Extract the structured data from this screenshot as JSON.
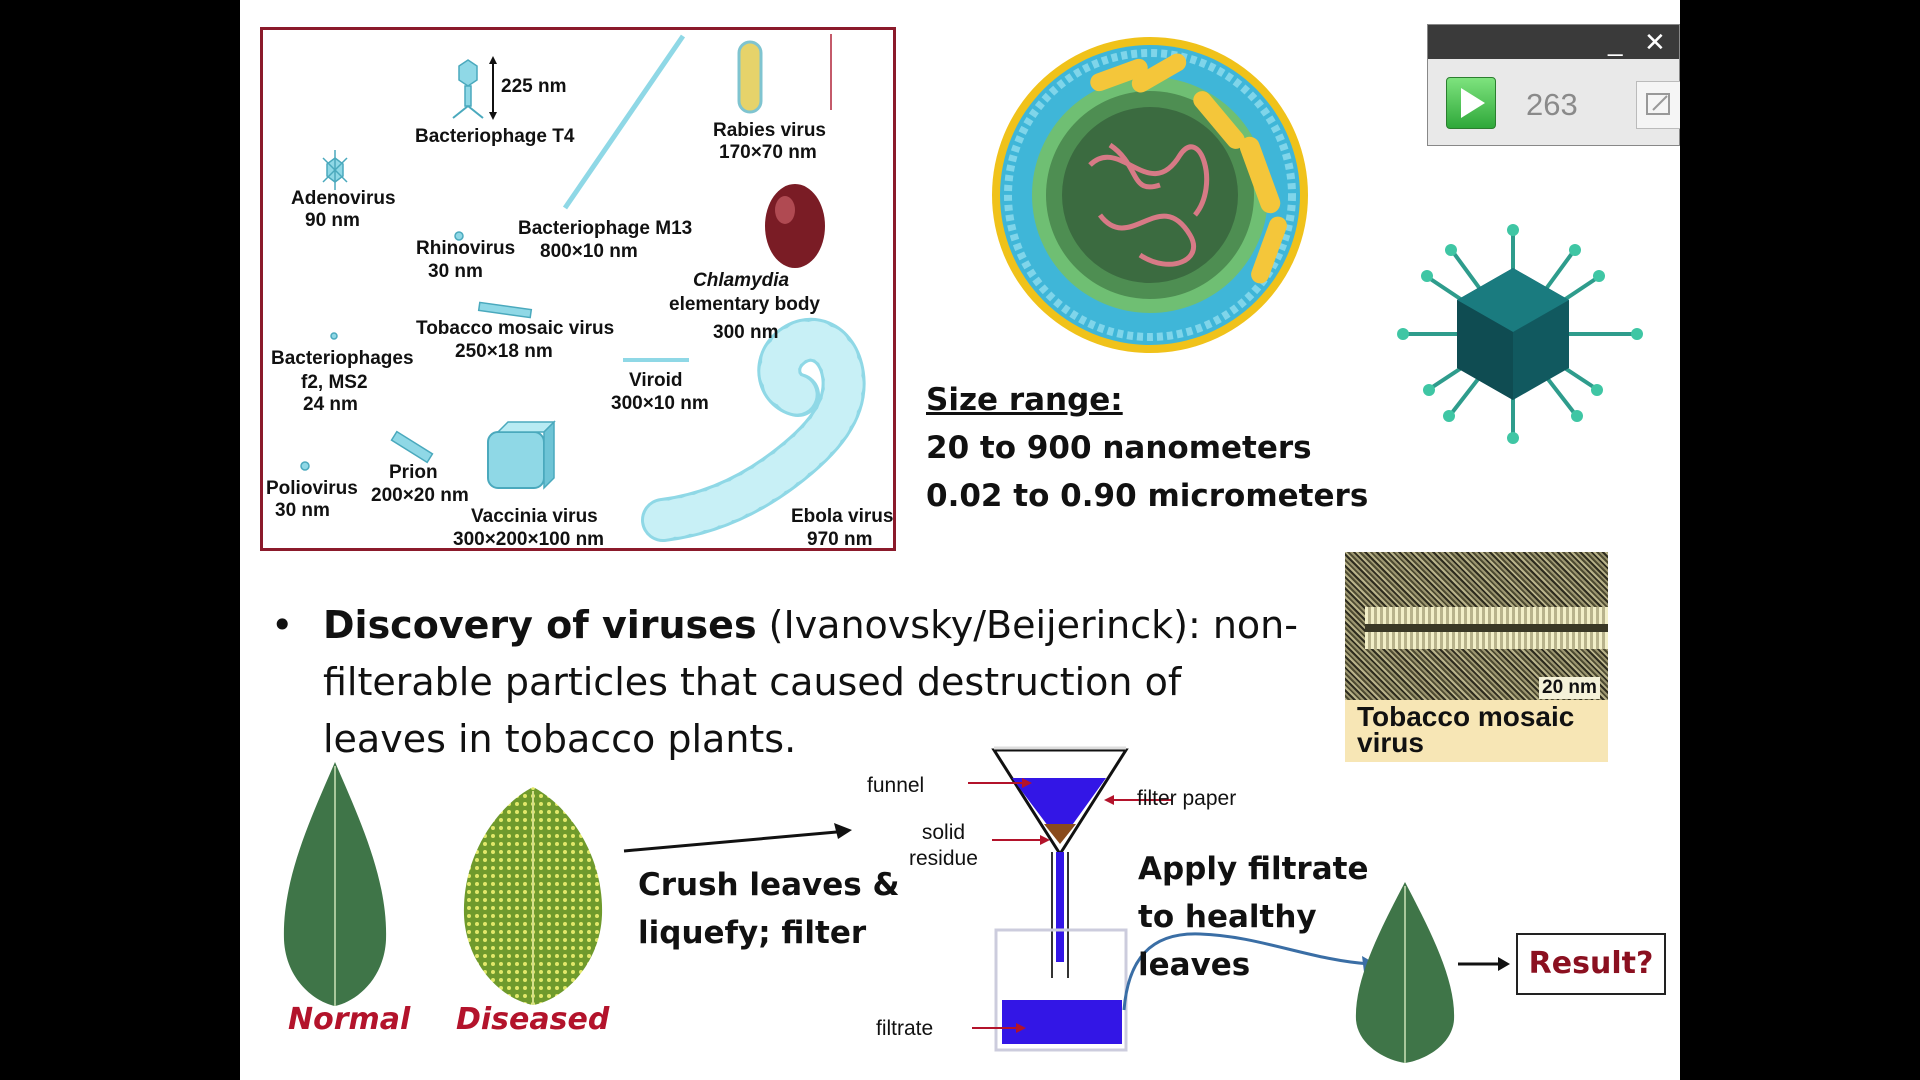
{
  "figure": {
    "bacteriophage_t4": {
      "name": "Bacteriophage T4",
      "size": "225 nm"
    },
    "adenovirus": {
      "name": "Adenovirus",
      "size": "90 nm"
    },
    "rabies": {
      "name": "Rabies virus",
      "size": "170×70 nm"
    },
    "m13": {
      "name": "Bacteriophage M13",
      "size": "800×10 nm"
    },
    "rhinovirus": {
      "name": "Rhinovirus",
      "size": "30 nm"
    },
    "chlamydia": {
      "name_italic": "Chlamydia",
      "name_rest": "elementary body",
      "size": "300 nm"
    },
    "tmv": {
      "name": "Tobacco mosaic virus",
      "size": "250×18 nm"
    },
    "phages_f2": {
      "name_line1": "Bacteriophages",
      "name_line2": "f2, MS2",
      "size": "24 nm"
    },
    "viroid": {
      "name": "Viroid",
      "size": "300×10 nm"
    },
    "prion": {
      "name": "Prion",
      "size": "200×20 nm"
    },
    "poliovirus": {
      "name": "Poliovirus",
      "size": "30 nm"
    },
    "vaccinia": {
      "name": "Vaccinia virus",
      "size": "300×200×100 nm"
    },
    "ebola": {
      "name": "Ebola virus",
      "size": "970 nm"
    }
  },
  "size_range": {
    "heading": "Size range:",
    "line1": "20 to 900 nanometers",
    "line2": "0.02 to 0.90 micrometers"
  },
  "bullet": {
    "bold": "Discovery of viruses",
    "rest": " (Ivanovsky/Beijerinck): non-filterable particles that caused destruction of leaves in tobacco plants."
  },
  "player": {
    "minimize": "_",
    "close": "✕",
    "count": "263",
    "play_icon": "play-icon",
    "expand_icon": "expand-icon"
  },
  "micrograph": {
    "scale": "20 nm",
    "label": "Tobacco mosaic virus"
  },
  "leaves": {
    "normal": "Normal",
    "diseased": "Diseased"
  },
  "process": {
    "crush_line1": "Crush leaves &",
    "crush_line2": "liquefy; filter",
    "funnel": "funnel",
    "filter_paper": "filter paper",
    "solid_line1": "solid",
    "solid_line2": "residue",
    "filtrate": "filtrate",
    "apply_line1": "Apply filtrate",
    "apply_line2": "to healthy",
    "apply_line3": "leaves",
    "result": "Result?"
  },
  "colors": {
    "accent_red": "#b3132b",
    "frame_red": "#8b1a2b",
    "filter_blue": "#3316e6",
    "play_green": "#2fa83a"
  }
}
